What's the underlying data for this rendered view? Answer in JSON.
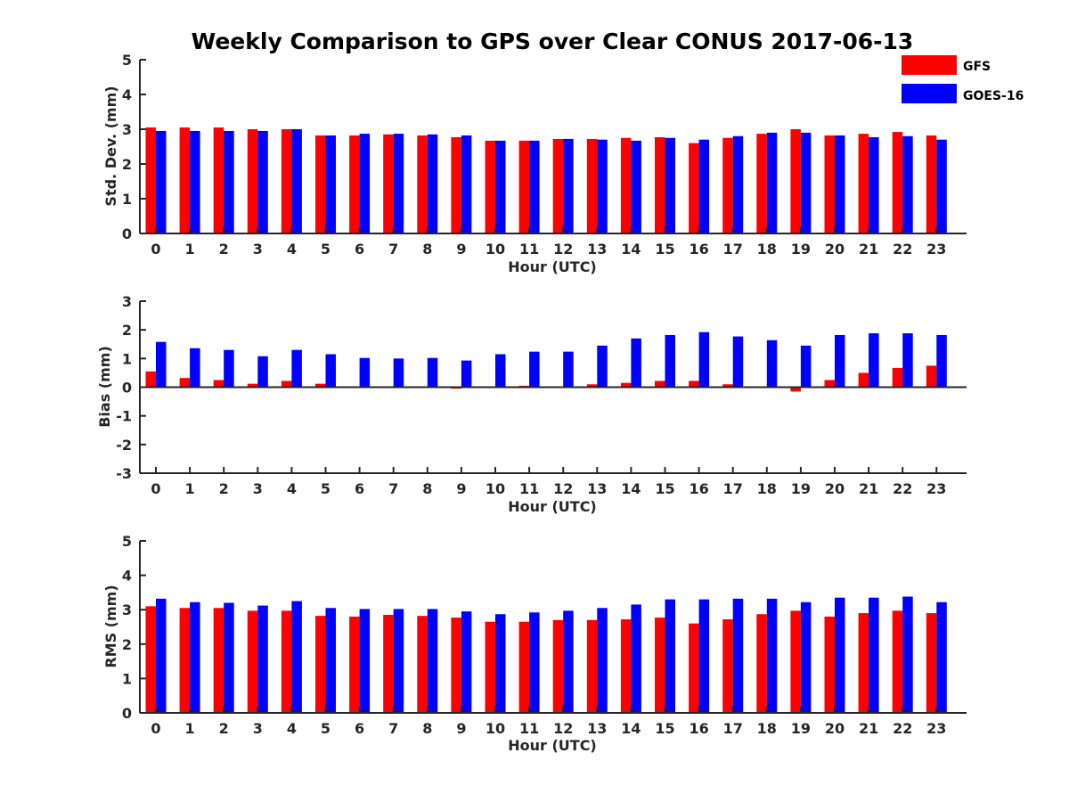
{
  "chart_data": {
    "title": "Weekly Comparison to GPS over Clear CONUS 2017-06-13",
    "legend": [
      {
        "name": "GFS",
        "color": "#ff0000"
      },
      {
        "name": "GOES-16",
        "color": "#0000ff"
      }
    ],
    "legend_placement": "top-right",
    "subplots": [
      {
        "type": "bar",
        "ylabel": "Std. Dev. (mm)",
        "xlabel": "Hour (UTC)",
        "ylim": [
          0,
          5
        ],
        "yticks": [
          0,
          1,
          2,
          3,
          4,
          5
        ],
        "categories": [
          "0",
          "1",
          "2",
          "3",
          "4",
          "5",
          "6",
          "7",
          "8",
          "9",
          "10",
          "11",
          "12",
          "13",
          "14",
          "15",
          "16",
          "17",
          "18",
          "19",
          "20",
          "21",
          "22",
          "23"
        ],
        "series": [
          {
            "name": "GFS",
            "color": "#ff0000",
            "values": [
              3.05,
              3.05,
              3.05,
              3.0,
              3.0,
              2.82,
              2.82,
              2.85,
              2.82,
              2.77,
              2.67,
              2.67,
              2.72,
              2.72,
              2.75,
              2.77,
              2.6,
              2.75,
              2.87,
              3.0,
              2.82,
              2.87,
              2.92,
              2.82
            ]
          },
          {
            "name": "GOES-16",
            "color": "#0000ff",
            "values": [
              2.95,
              2.95,
              2.95,
              2.95,
              3.0,
              2.82,
              2.87,
              2.87,
              2.85,
              2.82,
              2.67,
              2.67,
              2.72,
              2.7,
              2.67,
              2.75,
              2.7,
              2.8,
              2.9,
              2.9,
              2.82,
              2.77,
              2.8,
              2.7
            ]
          }
        ]
      },
      {
        "type": "bar",
        "ylabel": "Bias (mm)",
        "xlabel": "Hour (UTC)",
        "ylim": [
          -3,
          3
        ],
        "yticks": [
          -3,
          -2,
          -1,
          0,
          1,
          2,
          3
        ],
        "categories": [
          "0",
          "1",
          "2",
          "3",
          "4",
          "5",
          "6",
          "7",
          "8",
          "9",
          "10",
          "11",
          "12",
          "13",
          "14",
          "15",
          "16",
          "17",
          "18",
          "19",
          "20",
          "21",
          "22",
          "23"
        ],
        "series": [
          {
            "name": "GFS",
            "color": "#ff0000",
            "values": [
              0.55,
              0.32,
              0.25,
              0.12,
              0.22,
              0.12,
              0.0,
              0.0,
              0.03,
              -0.05,
              0.03,
              0.05,
              0.0,
              0.1,
              0.15,
              0.22,
              0.22,
              0.1,
              0.03,
              -0.15,
              0.25,
              0.5,
              0.67,
              0.75
            ]
          },
          {
            "name": "GOES-16",
            "color": "#0000ff",
            "values": [
              1.58,
              1.36,
              1.3,
              1.08,
              1.3,
              1.15,
              1.02,
              1.0,
              1.02,
              0.93,
              1.15,
              1.24,
              1.24,
              1.45,
              1.7,
              1.82,
              1.92,
              1.77,
              1.64,
              1.45,
              1.82,
              1.88,
              1.88,
              1.82
            ]
          }
        ]
      },
      {
        "type": "bar",
        "ylabel": "RMS (mm)",
        "xlabel": "Hour (UTC)",
        "ylim": [
          0,
          5
        ],
        "yticks": [
          0,
          1,
          2,
          3,
          4,
          5
        ],
        "categories": [
          "0",
          "1",
          "2",
          "3",
          "4",
          "5",
          "6",
          "7",
          "8",
          "9",
          "10",
          "11",
          "12",
          "13",
          "14",
          "15",
          "16",
          "17",
          "18",
          "19",
          "20",
          "21",
          "22",
          "23"
        ],
        "series": [
          {
            "name": "GFS",
            "color": "#ff0000",
            "values": [
              3.1,
              3.05,
              3.05,
              2.97,
              2.97,
              2.82,
              2.8,
              2.85,
              2.82,
              2.77,
              2.65,
              2.65,
              2.7,
              2.7,
              2.72,
              2.77,
              2.6,
              2.72,
              2.87,
              2.97,
              2.8,
              2.9,
              2.97,
              2.9
            ]
          },
          {
            "name": "GOES-16",
            "color": "#0000ff",
            "values": [
              3.32,
              3.22,
              3.2,
              3.12,
              3.25,
              3.05,
              3.02,
              3.02,
              3.02,
              2.95,
              2.87,
              2.92,
              2.97,
              3.05,
              3.15,
              3.3,
              3.3,
              3.32,
              3.32,
              3.22,
              3.35,
              3.35,
              3.38,
              3.22
            ]
          }
        ]
      }
    ]
  }
}
